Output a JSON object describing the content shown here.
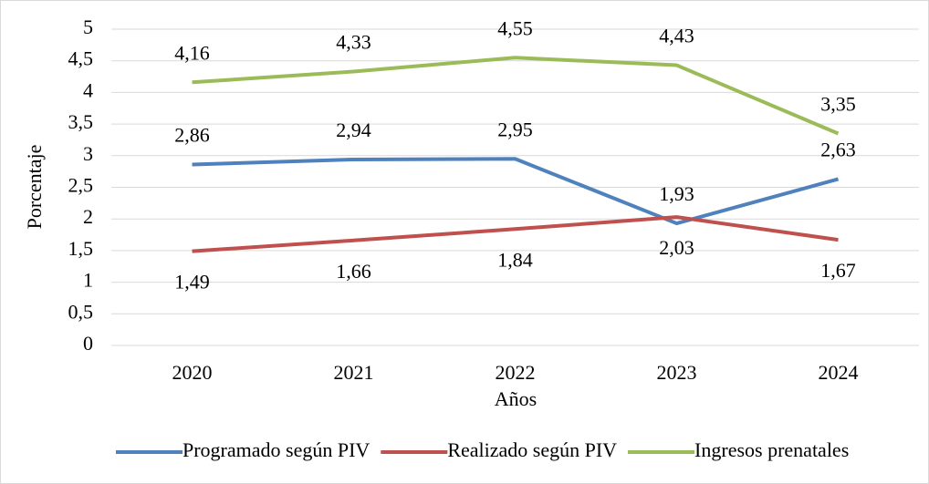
{
  "chart_data": {
    "type": "line",
    "x_label": "Años",
    "y_label": "Porcentaje",
    "categories": [
      "2020",
      "2021",
      "2022",
      "2023",
      "2024"
    ],
    "series": [
      {
        "name": "Programado según PIV",
        "color": "#4f81bd",
        "values": [
          2.86,
          2.94,
          2.95,
          1.93,
          2.63
        ],
        "value_labels": [
          "2,86",
          "2,94",
          "2,95",
          "1,93",
          "2,63"
        ]
      },
      {
        "name": "Realizado según PIV",
        "color": "#c0504d",
        "values": [
          1.49,
          1.66,
          1.84,
          2.03,
          1.67
        ],
        "value_labels": [
          "1,49",
          "1,66",
          "1,84",
          "2,03",
          "1,67"
        ]
      },
      {
        "name": "Ingresos prenatales",
        "color": "#9bbb59",
        "values": [
          4.16,
          4.33,
          4.55,
          4.43,
          3.35
        ],
        "value_labels": [
          "4,16",
          "4,33",
          "4,55",
          "4,43",
          "3,35"
        ]
      }
    ],
    "ylim": [
      0,
      5
    ],
    "yticks": [
      0,
      {
        "value": 0.5,
        "label": "0,5"
      },
      1,
      {
        "value": 1.5,
        "label": "1,5"
      },
      2,
      {
        "value": 2.5,
        "label": "2,5"
      },
      3,
      {
        "value": 3.5,
        "label": "3,5"
      },
      4,
      {
        "value": 4.5,
        "label": "4,5"
      },
      5
    ],
    "grid": true,
    "legend": "bottom"
  }
}
